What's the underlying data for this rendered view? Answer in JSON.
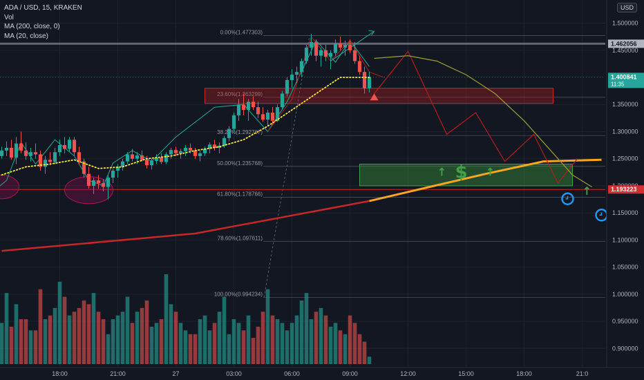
{
  "header": {
    "symbol_line": "ADA / USD, 15, KRAKEN",
    "indicators": [
      "Vol",
      "MA (200, close, 0)",
      "MA (20, close)"
    ],
    "currency": "USD"
  },
  "colors": {
    "background": "#131722",
    "up": "#26a69a",
    "down": "#ef5350",
    "ma200": "#c62828",
    "ma200_projection": "#f5a623",
    "ma20": "#ffeb3b",
    "fib": "#787b86",
    "projection_curve": "#9e9e32",
    "zigzag": "#b71c1c",
    "resistance_zone": "rgba(183,28,28,0.35)",
    "support_zone": "rgba(56,142,60,0.45)",
    "last_price_badge": "#26a69a",
    "level_badge": "#d32f2f",
    "top_badge": "#b2b5be"
  },
  "chart_data": {
    "type": "candlestick",
    "interval": "15",
    "x_tick_labels": [
      "18:00",
      "21:00",
      "27",
      "03:00",
      "06:00",
      "09:00",
      "12:00",
      "15:00",
      "18:00",
      "21:0"
    ],
    "y_tick_labels": [
      "1.500000",
      "1.450000",
      "1.350000",
      "1.300000",
      "1.250000",
      "1.200000",
      "1.150000",
      "1.100000",
      "1.050000",
      "1.000000",
      "0.950000",
      "0.900000"
    ],
    "ylim": [
      0.88,
      1.53
    ],
    "price_labels": [
      {
        "value": 1.462056,
        "text": "1.462056",
        "style": "top"
      },
      {
        "value": 1.400841,
        "text": "1.400841",
        "sub": "11:35",
        "style": "last"
      },
      {
        "value": 1.193223,
        "text": "1.193223",
        "style": "level"
      }
    ],
    "fibonacci": {
      "high": 1.477303,
      "low": 0.994234,
      "levels": [
        {
          "label": "0.00%(1.477303)",
          "value": 1.477303
        },
        {
          "label": "23.60%(1.363299)",
          "value": 1.363299
        },
        {
          "label": "38.20%(1.292767)",
          "value": 1.292767
        },
        {
          "label": "50.00%(1.235768)",
          "value": 1.235768
        },
        {
          "label": "61.80%(1.178766)",
          "value": 1.178766
        },
        {
          "label": "78.60%(1.097611)",
          "value": 1.097611
        },
        {
          "label": "100.00%(0.994234)",
          "value": 0.994234
        }
      ]
    },
    "candles": [
      [
        1.255,
        1.272,
        1.25,
        1.265
      ],
      [
        1.265,
        1.282,
        1.255,
        1.27
      ],
      [
        1.27,
        1.285,
        1.248,
        1.252
      ],
      [
        1.252,
        1.29,
        1.24,
        1.278
      ],
      [
        1.278,
        1.3,
        1.26,
        1.265
      ],
      [
        1.265,
        1.28,
        1.248,
        1.255
      ],
      [
        1.255,
        1.27,
        1.245,
        1.262
      ],
      [
        1.262,
        1.278,
        1.25,
        1.258
      ],
      [
        1.258,
        1.265,
        1.228,
        1.235
      ],
      [
        1.235,
        1.255,
        1.222,
        1.248
      ],
      [
        1.248,
        1.262,
        1.238,
        1.244
      ],
      [
        1.244,
        1.27,
        1.24,
        1.262
      ],
      [
        1.262,
        1.285,
        1.255,
        1.275
      ],
      [
        1.275,
        1.29,
        1.26,
        1.268
      ],
      [
        1.268,
        1.29,
        1.262,
        1.285
      ],
      [
        1.285,
        1.29,
        1.255,
        1.262
      ],
      [
        1.262,
        1.272,
        1.24,
        1.245
      ],
      [
        1.245,
        1.25,
        1.215,
        1.222
      ],
      [
        1.222,
        1.235,
        1.195,
        1.2
      ],
      [
        1.2,
        1.215,
        1.185,
        1.21
      ],
      [
        1.21,
        1.22,
        1.195,
        1.205
      ],
      [
        1.205,
        1.212,
        1.19,
        1.198
      ],
      [
        1.198,
        1.22,
        1.175,
        1.215
      ],
      [
        1.215,
        1.232,
        1.205,
        1.228
      ],
      [
        1.228,
        1.24,
        1.215,
        1.235
      ],
      [
        1.235,
        1.25,
        1.228,
        1.245
      ],
      [
        1.245,
        1.262,
        1.24,
        1.258
      ],
      [
        1.258,
        1.268,
        1.245,
        1.25
      ],
      [
        1.25,
        1.262,
        1.24,
        1.256
      ],
      [
        1.256,
        1.265,
        1.245,
        1.248
      ],
      [
        1.248,
        1.255,
        1.232,
        1.238
      ],
      [
        1.238,
        1.25,
        1.23,
        1.246
      ],
      [
        1.246,
        1.258,
        1.24,
        1.252
      ],
      [
        1.252,
        1.26,
        1.24,
        1.244
      ],
      [
        1.244,
        1.262,
        1.24,
        1.258
      ],
      [
        1.258,
        1.27,
        1.25,
        1.266
      ],
      [
        1.266,
        1.272,
        1.255,
        1.26
      ],
      [
        1.26,
        1.268,
        1.25,
        1.264
      ],
      [
        1.264,
        1.275,
        1.255,
        1.27
      ],
      [
        1.27,
        1.278,
        1.26,
        1.265
      ],
      [
        1.265,
        1.27,
        1.25,
        1.255
      ],
      [
        1.255,
        1.265,
        1.245,
        1.26
      ],
      [
        1.26,
        1.272,
        1.255,
        1.268
      ],
      [
        1.268,
        1.28,
        1.26,
        1.276
      ],
      [
        1.276,
        1.285,
        1.265,
        1.27
      ],
      [
        1.27,
        1.28,
        1.26,
        1.274
      ],
      [
        1.274,
        1.292,
        1.27,
        1.288
      ],
      [
        1.288,
        1.31,
        1.282,
        1.305
      ],
      [
        1.305,
        1.335,
        1.3,
        1.33
      ],
      [
        1.33,
        1.36,
        1.32,
        1.35
      ],
      [
        1.35,
        1.37,
        1.33,
        1.34
      ],
      [
        1.34,
        1.36,
        1.32,
        1.355
      ],
      [
        1.355,
        1.365,
        1.34,
        1.345
      ],
      [
        1.345,
        1.355,
        1.325,
        1.332
      ],
      [
        1.332,
        1.345,
        1.318,
        1.322
      ],
      [
        1.322,
        1.34,
        1.31,
        1.335
      ],
      [
        1.335,
        1.345,
        1.315,
        1.32
      ],
      [
        1.32,
        1.35,
        1.318,
        1.345
      ],
      [
        1.345,
        1.375,
        1.34,
        1.37
      ],
      [
        1.37,
        1.4,
        1.365,
        1.395
      ],
      [
        1.395,
        1.415,
        1.38,
        1.405
      ],
      [
        1.405,
        1.42,
        1.39,
        1.41
      ],
      [
        1.41,
        1.435,
        1.4,
        1.43
      ],
      [
        1.43,
        1.46,
        1.425,
        1.455
      ],
      [
        1.455,
        1.48,
        1.44,
        1.465
      ],
      [
        1.465,
        1.47,
        1.43,
        1.44
      ],
      [
        1.44,
        1.455,
        1.42,
        1.45
      ],
      [
        1.45,
        1.46,
        1.43,
        1.438
      ],
      [
        1.438,
        1.45,
        1.415,
        1.445
      ],
      [
        1.445,
        1.47,
        1.44,
        1.462
      ],
      [
        1.462,
        1.475,
        1.45,
        1.455
      ],
      [
        1.455,
        1.468,
        1.44,
        1.46
      ],
      [
        1.46,
        1.47,
        1.445,
        1.45
      ],
      [
        1.45,
        1.465,
        1.425,
        1.43
      ],
      [
        1.43,
        1.44,
        1.405,
        1.41
      ],
      [
        1.41,
        1.42,
        1.37,
        1.38
      ],
      [
        1.38,
        1.41,
        1.372,
        1.40084
      ]
    ],
    "volumes": [
      55,
      95,
      50,
      80,
      60,
      60,
      45,
      45,
      100,
      60,
      65,
      75,
      110,
      90,
      65,
      70,
      75,
      85,
      80,
      95,
      70,
      60,
      40,
      60,
      65,
      70,
      90,
      55,
      70,
      75,
      85,
      50,
      55,
      60,
      120,
      80,
      70,
      55,
      45,
      40,
      40,
      60,
      65,
      45,
      55,
      70,
      90,
      40,
      60,
      55,
      45,
      65,
      35,
      50,
      70,
      100,
      65,
      60,
      55,
      45,
      55,
      65,
      85,
      95,
      60,
      70,
      75,
      65,
      50,
      55,
      45,
      40,
      65,
      55,
      40,
      30,
      10
    ],
    "ma200": [
      {
        "i": 0,
        "v": 1.08
      },
      {
        "i": 40,
        "v": 1.112
      },
      {
        "i": 76,
        "v": 1.172
      }
    ],
    "ma200_projection": [
      {
        "i": 76,
        "v": 1.172
      },
      {
        "i": 100,
        "v": 1.222
      },
      {
        "i": 112,
        "v": 1.245
      },
      {
        "i": 124,
        "v": 1.248
      }
    ],
    "ma20": [
      [
        0,
        1.22
      ],
      [
        5,
        1.235
      ],
      [
        10,
        1.24
      ],
      [
        15,
        1.248
      ],
      [
        20,
        1.232
      ],
      [
        25,
        1.235
      ],
      [
        30,
        1.25
      ],
      [
        35,
        1.255
      ],
      [
        40,
        1.265
      ],
      [
        45,
        1.272
      ],
      [
        50,
        1.285
      ],
      [
        55,
        1.31
      ],
      [
        60,
        1.34
      ],
      [
        65,
        1.37
      ],
      [
        70,
        1.4
      ],
      [
        76,
        1.4
      ]
    ],
    "projection_curve": [
      [
        77,
        1.435
      ],
      [
        84,
        1.44
      ],
      [
        90,
        1.43
      ],
      [
        96,
        1.405
      ],
      [
        102,
        1.37
      ],
      [
        108,
        1.32
      ],
      [
        114,
        1.26
      ],
      [
        118,
        1.22
      ],
      [
        122,
        1.198
      ]
    ],
    "zigzag_projection": [
      [
        77,
        1.37
      ],
      [
        84,
        1.448
      ],
      [
        92,
        1.295
      ],
      [
        98,
        1.335
      ],
      [
        104,
        1.245
      ],
      [
        110,
        1.295
      ],
      [
        115,
        1.205
      ],
      [
        119,
        1.25
      ]
    ],
    "trend_lines": [
      {
        "points": [
          [
            -5,
            1.165
          ],
          [
            1,
            1.21
          ],
          [
            4,
            1.28
          ],
          [
            7,
            1.24
          ],
          [
            11,
            1.285
          ],
          [
            15,
            1.255
          ],
          [
            18,
            1.21
          ],
          [
            21,
            1.2
          ],
          [
            23,
            1.242
          ],
          [
            27,
            1.265
          ],
          [
            31,
            1.245
          ],
          [
            36,
            1.29
          ],
          [
            44,
            1.345
          ],
          [
            50,
            1.35
          ],
          [
            55,
            1.3
          ],
          [
            59,
            1.355
          ],
          [
            65,
            1.468
          ],
          [
            69,
            1.428
          ],
          [
            72,
            1.468
          ],
          [
            76,
            1.42
          ]
        ],
        "color": "#26a69a"
      },
      {
        "points": [
          [
            55,
            1.3
          ],
          [
            60,
            1.36
          ],
          [
            64,
            1.475
          ],
          [
            68,
            1.43
          ],
          [
            72,
            1.468
          ],
          [
            76,
            1.41
          ],
          [
            79,
            1.4
          ]
        ],
        "color": "#b71c1c"
      }
    ],
    "arrow_up": {
      "from": [
        68,
        1.43
      ],
      "to": [
        77,
        1.485
      ]
    },
    "zones": [
      {
        "name": "resistance",
        "x0": 43,
        "x1": 114,
        "top": 1.38,
        "bottom": 1.352
      },
      {
        "name": "support",
        "x0": 74,
        "x1": 118,
        "top": 1.24,
        "bottom": 1.2
      }
    ],
    "ellipses": [
      {
        "cx": 0,
        "cy": 1.198,
        "rx": 25,
        "ry": 0.022
      },
      {
        "cx": 18,
        "cy": 1.192,
        "rx": 35,
        "ry": 0.025
      }
    ],
    "support_icons": [
      {
        "glyph": "↑",
        "i": 91,
        "v": 1.225
      },
      {
        "glyph": "$",
        "i": 95,
        "v": 1.226
      },
      {
        "glyph": "↑",
        "i": 101,
        "v": 1.225
      },
      {
        "glyph": "↑",
        "i": 121,
        "v": 1.19
      }
    ],
    "clock_icons": [
      {
        "i": 117,
        "v": 1.176
      },
      {
        "i": 124,
        "v": 1.146
      }
    ],
    "warning_icon": {
      "i": 77,
      "v": 1.364
    }
  }
}
